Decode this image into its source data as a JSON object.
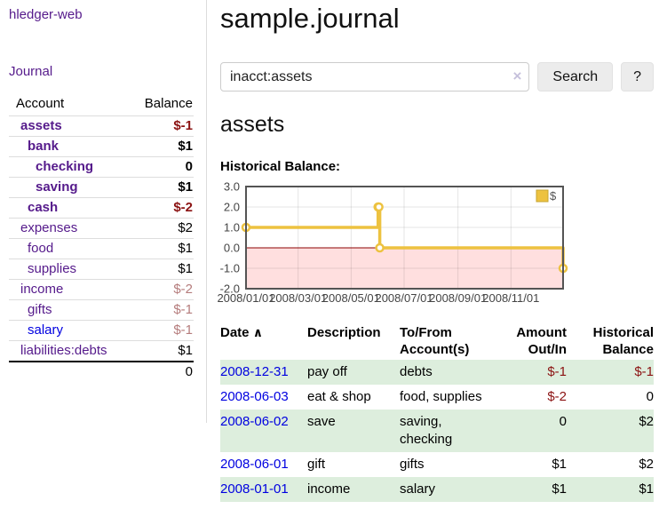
{
  "sidebar": {
    "brand": "hledger-web",
    "nav": {
      "journal": "Journal"
    },
    "accounts_table": {
      "headers": {
        "account": "Account",
        "balance": "Balance"
      },
      "rows": [
        {
          "name": "assets",
          "balance": "$-1",
          "level": 1,
          "bold": true
        },
        {
          "name": "bank",
          "balance": "$1",
          "level": 2,
          "bold": true
        },
        {
          "name": "checking",
          "balance": "0",
          "level": 3,
          "bold": true
        },
        {
          "name": "saving",
          "balance": "$1",
          "level": 3,
          "bold": true
        },
        {
          "name": "cash",
          "balance": "$-2",
          "level": 2,
          "bold": true
        },
        {
          "name": "expenses",
          "balance": "$2",
          "level": 1
        },
        {
          "name": "food",
          "balance": "$1",
          "level": 2
        },
        {
          "name": "supplies",
          "balance": "$1",
          "level": 2
        },
        {
          "name": "income",
          "balance": "$-2",
          "level": 1
        },
        {
          "name": "gifts",
          "balance": "$-1",
          "level": 2
        },
        {
          "name": "salary",
          "balance": "$-1",
          "level": 2,
          "unvisited": true
        },
        {
          "name": "liabilities:debts",
          "balance": "$1",
          "level": 1
        }
      ],
      "total": "0"
    }
  },
  "header": {
    "title": "sample.journal"
  },
  "search": {
    "query": "inacct:assets",
    "placeholder": "",
    "clear_icon": "×",
    "search_label": "Search",
    "help_label": "?"
  },
  "account_page": {
    "heading": "assets",
    "chart_label": "Historical Balance:"
  },
  "chart_data": {
    "type": "line",
    "step": true,
    "title": "Historical Balance",
    "xlabel": "",
    "ylabel": "",
    "series": [
      {
        "name": "$",
        "color": "#edc240",
        "points": [
          [
            "2008-01-01",
            1
          ],
          [
            "2008-06-01",
            2
          ],
          [
            "2008-06-02",
            2
          ],
          [
            "2008-06-03",
            0
          ],
          [
            "2008-12-31",
            -1
          ]
        ]
      }
    ],
    "x_ticks": [
      "2008/01/01",
      "2008/03/01",
      "2008/05/01",
      "2008/07/01",
      "2008/09/01",
      "2008/11/01"
    ],
    "y_ticks": [
      3.0,
      2.0,
      1.0,
      0.0,
      -1.0,
      -2.0
    ],
    "ylim": [
      -2,
      3
    ],
    "xlim": [
      "2008-01-01",
      "2008-12-31"
    ],
    "grid": true,
    "legend_position": "top-right",
    "negative_region_color": "#ffb3b3",
    "zero_line_color": "#8b0000",
    "border_color": "#545454"
  },
  "register": {
    "columns": [
      {
        "label": "Date",
        "sort_icon": "∧"
      },
      {
        "label": "Description"
      },
      {
        "label": "To/From Account(s)"
      },
      {
        "label": "Amount Out/In"
      },
      {
        "label": "Historical Balance"
      }
    ],
    "rows": [
      {
        "date": "2008-12-31",
        "description": "pay off",
        "accounts": "debts",
        "amount": "$-1",
        "balance": "$-1"
      },
      {
        "date": "2008-06-03",
        "description": "eat & shop",
        "accounts": "food, supplies",
        "amount": "$-2",
        "balance": "0"
      },
      {
        "date": "2008-06-02",
        "description": "save",
        "accounts": "saving, checking",
        "amount": "0",
        "balance": "$2"
      },
      {
        "date": "2008-06-01",
        "description": "gift",
        "accounts": "gifts",
        "amount": "$1",
        "balance": "$2"
      },
      {
        "date": "2008-01-01",
        "description": "income",
        "accounts": "salary",
        "amount": "$1",
        "balance": "$1"
      }
    ]
  },
  "colors": {
    "link_purple": "#551a8b",
    "link_blue": "#0000e0",
    "negative_strong": "#8b1212",
    "negative_soft": "#b57c7c",
    "row_stripe_green": "#ddeedd",
    "chart_line_yellow": "#edc240"
  }
}
